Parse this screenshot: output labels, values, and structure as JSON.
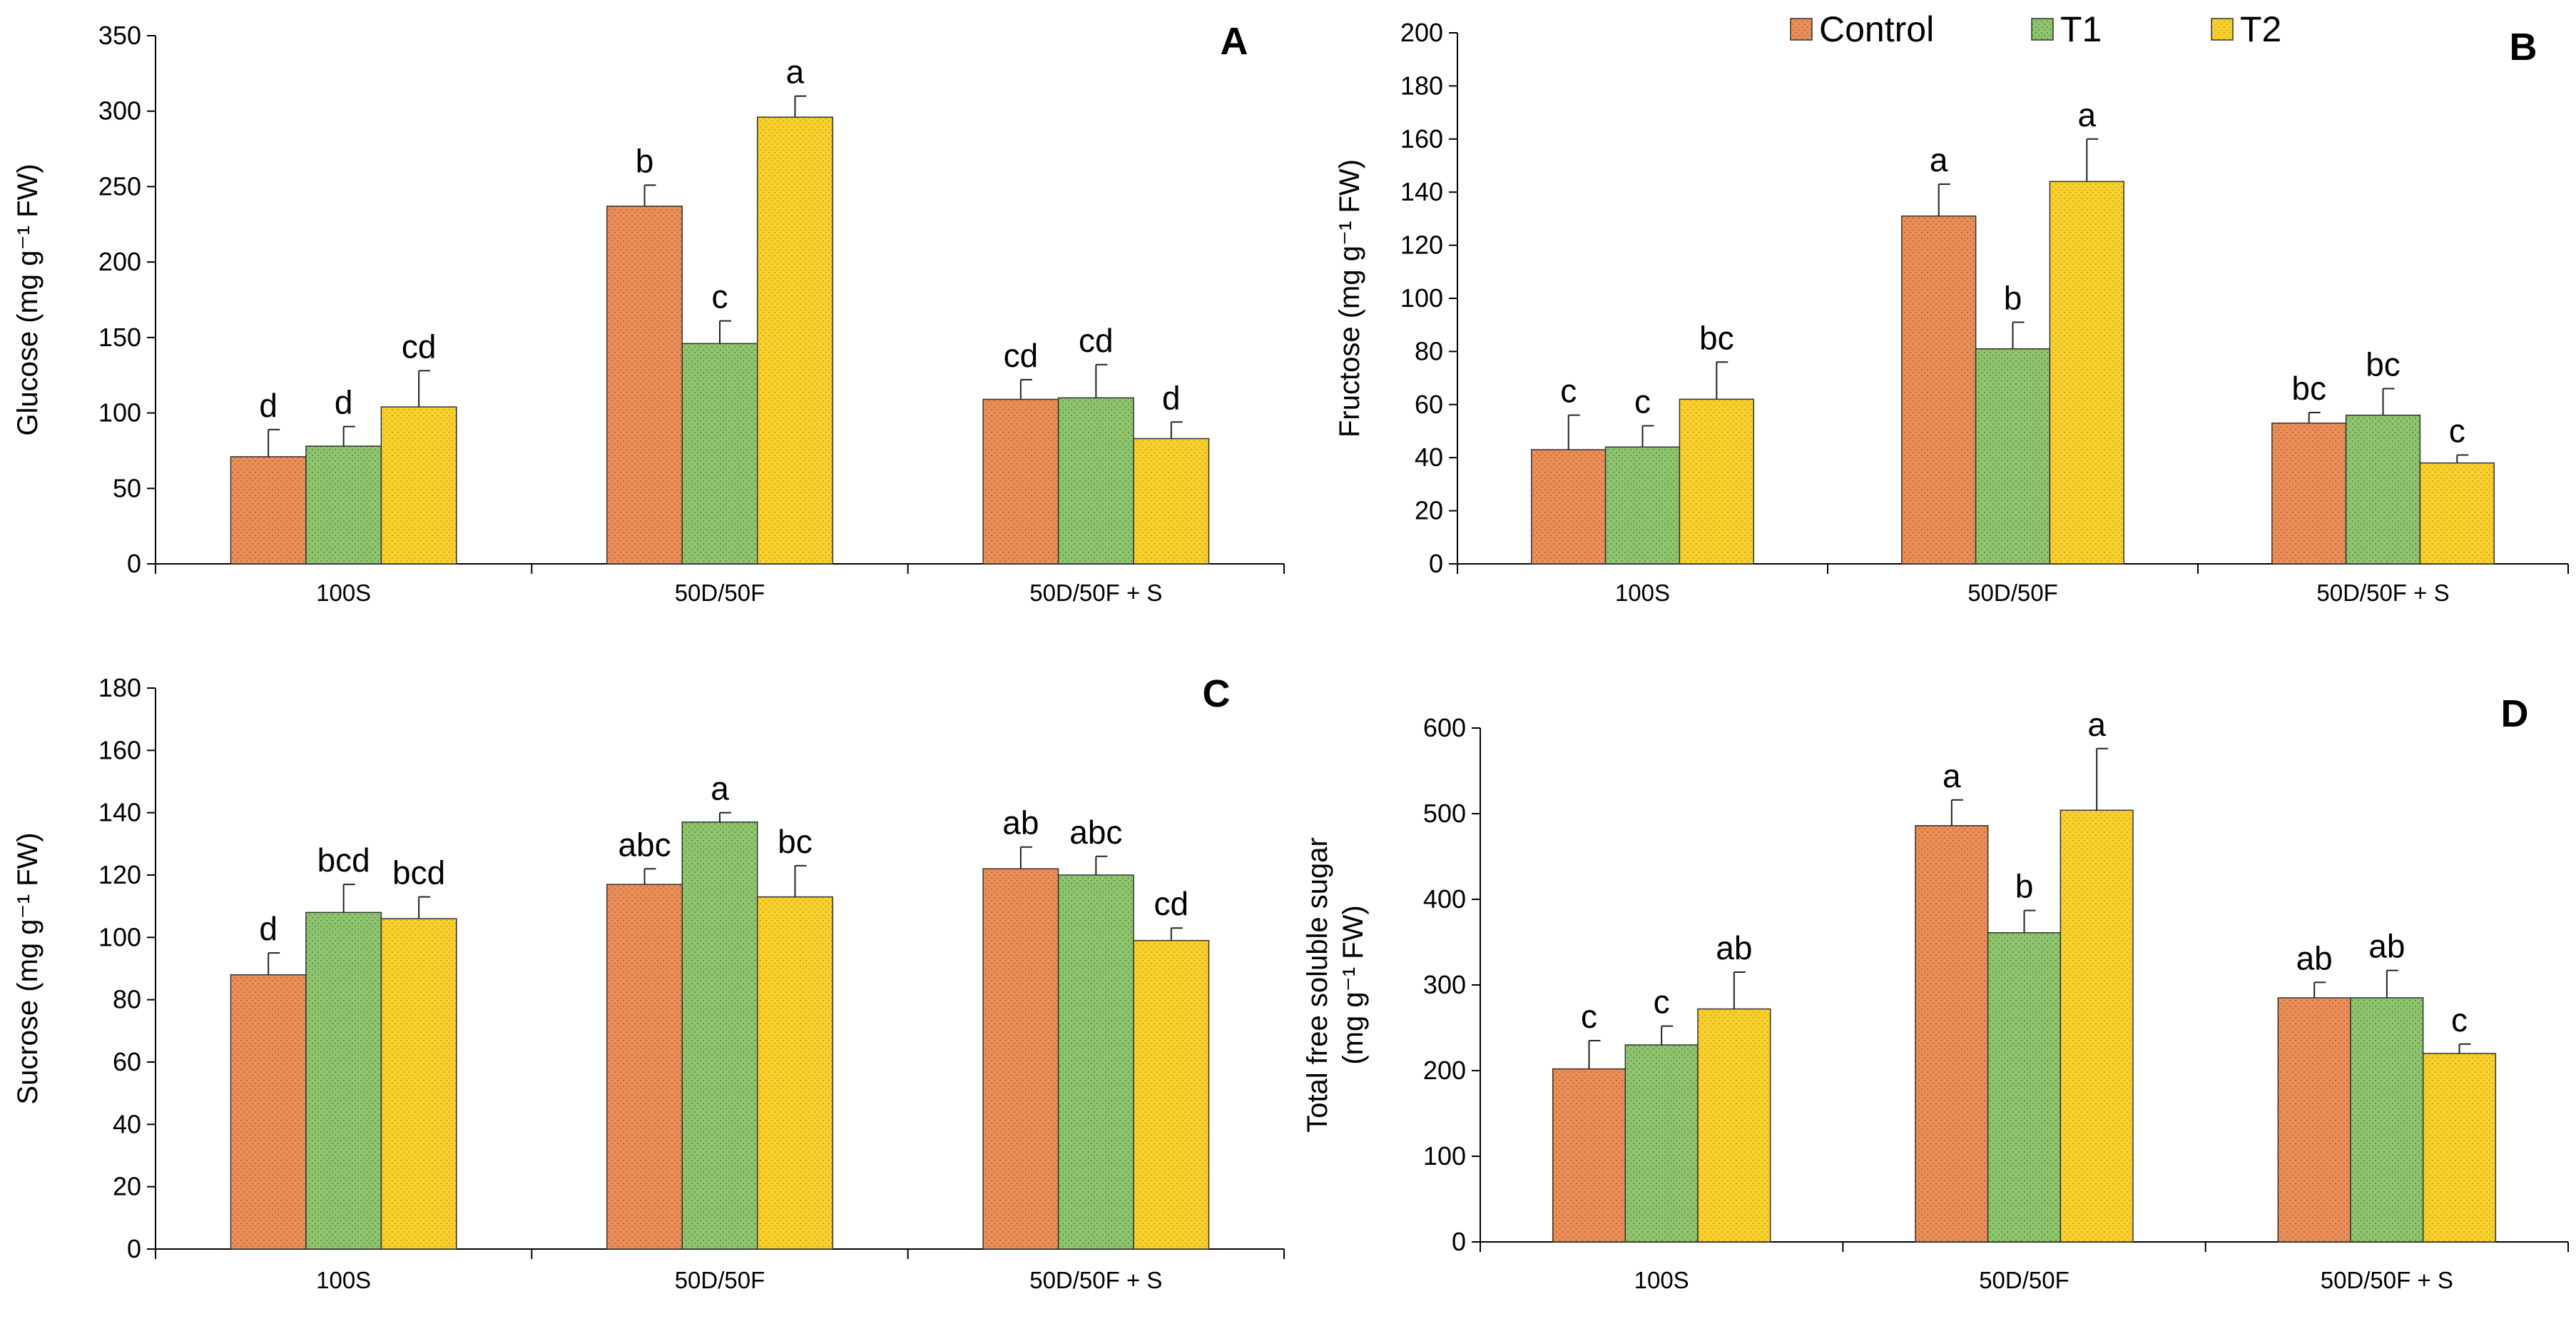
{
  "colors": {
    "Control": "#e88e58",
    "T1": "#8ec46e",
    "T2": "#f7cf2e"
  },
  "legend": [
    {
      "name": "Control",
      "label": "Control"
    },
    {
      "name": "T1",
      "label": "T1"
    },
    {
      "name": "T2",
      "label": "T2"
    }
  ],
  "chart_data": [
    {
      "type": "bar",
      "panel": "A",
      "ylabel": "Glucose (mg g⁻¹ FW)",
      "ylabel_lines": [
        "Glucose (mg g⁻¹ FW)"
      ],
      "ylim": [
        0,
        350
      ],
      "yticks": [
        0,
        50,
        100,
        150,
        200,
        250,
        300,
        350
      ],
      "categories": [
        "100S",
        "50D/50F",
        "50D/50F + S"
      ],
      "series": [
        {
          "name": "Control",
          "values": [
            71,
            237,
            109
          ],
          "errors": [
            18,
            14,
            13
          ],
          "letters": [
            "d",
            "b",
            "cd"
          ]
        },
        {
          "name": "T1",
          "values": [
            78,
            146,
            110
          ],
          "errors": [
            13,
            15,
            22
          ],
          "letters": [
            "d",
            "c",
            "cd"
          ]
        },
        {
          "name": "T2",
          "values": [
            104,
            296,
            83
          ],
          "errors": [
            24,
            14,
            11
          ],
          "letters": [
            "cd",
            "a",
            "d"
          ]
        }
      ]
    },
    {
      "type": "bar",
      "panel": "B",
      "ylabel": "Fructose (mg g⁻¹ FW)",
      "ylabel_lines": [
        "Fructose (mg g⁻¹ FW)"
      ],
      "ylim": [
        0,
        200
      ],
      "yticks": [
        0,
        20,
        40,
        60,
        80,
        100,
        120,
        140,
        160,
        180,
        200
      ],
      "categories": [
        "100S",
        "50D/50F",
        "50D/50F + S"
      ],
      "series": [
        {
          "name": "Control",
          "values": [
            43,
            131,
            53
          ],
          "errors": [
            13,
            12,
            4
          ],
          "letters": [
            "c",
            "a",
            "bc"
          ]
        },
        {
          "name": "T1",
          "values": [
            44,
            81,
            56
          ],
          "errors": [
            8,
            10,
            10
          ],
          "letters": [
            "c",
            "b",
            "bc"
          ]
        },
        {
          "name": "T2",
          "values": [
            62,
            144,
            38
          ],
          "errors": [
            14,
            16,
            3
          ],
          "letters": [
            "bc",
            "a",
            "c"
          ]
        }
      ]
    },
    {
      "type": "bar",
      "panel": "C",
      "ylabel": "Sucrose (mg g⁻¹ FW)",
      "ylabel_lines": [
        "Sucrose (mg g⁻¹ FW)"
      ],
      "ylim": [
        0,
        180
      ],
      "yticks": [
        0,
        20,
        40,
        60,
        80,
        100,
        120,
        140,
        160,
        180
      ],
      "categories": [
        "100S",
        "50D/50F",
        "50D/50F + S"
      ],
      "series": [
        {
          "name": "Control",
          "values": [
            88,
            117,
            122
          ],
          "errors": [
            7,
            5,
            7
          ],
          "letters": [
            "d",
            "abc",
            "ab"
          ]
        },
        {
          "name": "T1",
          "values": [
            108,
            137,
            120
          ],
          "errors": [
            9,
            3,
            6
          ],
          "letters": [
            "bcd",
            "a",
            "abc"
          ]
        },
        {
          "name": "T2",
          "values": [
            106,
            113,
            99
          ],
          "errors": [
            7,
            10,
            4
          ],
          "letters": [
            "bcd",
            "bc",
            "cd"
          ]
        }
      ]
    },
    {
      "type": "bar",
      "panel": "D",
      "ylabel": "Total free soluble sugar (mg g⁻¹ FW)",
      "ylabel_lines": [
        "Total free soluble sugar",
        "(mg g⁻¹ FW)"
      ],
      "ylim": [
        0,
        600
      ],
      "yticks": [
        0,
        100,
        200,
        300,
        400,
        500,
        600
      ],
      "categories": [
        "100S",
        "50D/50F",
        "50D/50F + S"
      ],
      "series": [
        {
          "name": "Control",
          "values": [
            202,
            486,
            285
          ],
          "errors": [
            33,
            30,
            18
          ],
          "letters": [
            "c",
            "a",
            "ab"
          ]
        },
        {
          "name": "T1",
          "values": [
            230,
            361,
            285
          ],
          "errors": [
            22,
            26,
            32
          ],
          "letters": [
            "c",
            "b",
            "ab"
          ]
        },
        {
          "name": "T2",
          "values": [
            272,
            504,
            220
          ],
          "errors": [
            43,
            72,
            11
          ],
          "letters": [
            "ab",
            "a",
            "c"
          ]
        }
      ]
    }
  ]
}
